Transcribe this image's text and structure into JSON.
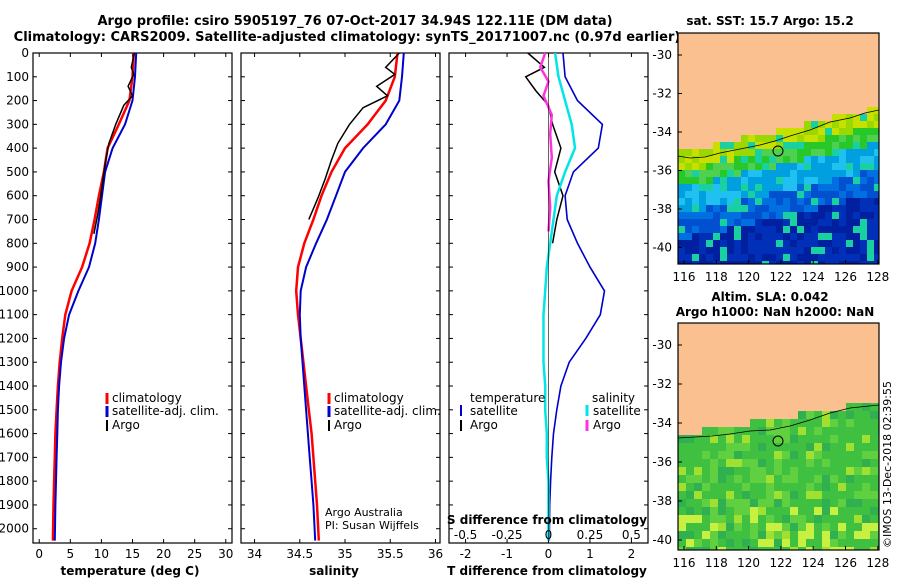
{
  "header": {
    "line1": "Argo profile: csiro 5905197_76 07-Oct-2017 34.94S 122.11E (DM data)",
    "line2": "Climatology: CARS2009. Satellite-adjusted climatology: synTS_20171007.nc (0.97d earlier)"
  },
  "colors": {
    "climatology": "#ff0000",
    "satellite": "#0000cc",
    "argo": "#000000",
    "sat_salinity": "#00e5e5",
    "argo_salinity": "#ff33dd",
    "land": "#fbc08f"
  },
  "chart_data": [
    {
      "type": "line",
      "xlabel": "temperature (deg C)",
      "xlim": [
        -1,
        31
      ],
      "ylim": [
        2060,
        0
      ],
      "yticks": [
        0,
        100,
        200,
        300,
        400,
        500,
        600,
        700,
        800,
        900,
        1000,
        1100,
        1200,
        1300,
        1400,
        1500,
        1600,
        1700,
        1800,
        1900,
        2000
      ],
      "xticks": [
        0,
        5,
        10,
        15,
        20,
        25,
        30
      ],
      "legend": [
        "climatology",
        "satellite-adj. clim.",
        "Argo"
      ],
      "series": [
        {
          "name": "climatology",
          "x": [
            15.2,
            15.0,
            14.5,
            12.8,
            11.0,
            10.4,
            9.6,
            8.9,
            8.1,
            6.9,
            5.2,
            4.2,
            3.7,
            3.3,
            3.0,
            2.8,
            2.6,
            2.5,
            2.4,
            2.3,
            2.2
          ],
          "y": [
            0,
            100,
            200,
            300,
            400,
            500,
            600,
            700,
            800,
            900,
            1000,
            1100,
            1200,
            1300,
            1400,
            1500,
            1600,
            1700,
            1800,
            1900,
            2050
          ]
        },
        {
          "name": "satellite-adj. clim.",
          "x": [
            15.6,
            15.4,
            15.0,
            13.8,
            11.8,
            10.6,
            10.1,
            9.6,
            9.0,
            8.0,
            6.3,
            4.8,
            4.0,
            3.5,
            3.2,
            3.0,
            2.9,
            2.8,
            2.7,
            2.6,
            2.5
          ],
          "y": [
            0,
            100,
            200,
            300,
            400,
            500,
            600,
            700,
            800,
            900,
            1000,
            1100,
            1200,
            1300,
            1400,
            1500,
            1600,
            1700,
            1800,
            1900,
            2050
          ]
        },
        {
          "name": "Argo",
          "x": [
            15.3,
            14.8,
            15.2,
            14.3,
            15.0,
            13.6,
            12.3,
            11.2,
            10.7,
            10.3,
            9.9,
            9.4,
            8.8
          ],
          "y": [
            0,
            60,
            90,
            140,
            180,
            220,
            300,
            380,
            450,
            520,
            600,
            680,
            760
          ]
        }
      ]
    },
    {
      "type": "line",
      "xlabel": "salinity",
      "xlim": [
        33.85,
        36.05
      ],
      "ylim": [
        2060,
        0
      ],
      "xticks": [
        34,
        34.5,
        35,
        35.5,
        36
      ],
      "legend": [
        "climatology",
        "satellite-adj. clim.",
        "Argo"
      ],
      "annotation": [
        "Argo Australia",
        "PI: Susan Wijffels"
      ],
      "series": [
        {
          "name": "climatology",
          "x": [
            35.58,
            35.55,
            35.45,
            35.25,
            35.0,
            34.85,
            34.74,
            34.65,
            34.55,
            34.48,
            34.46,
            34.48,
            34.51,
            34.54,
            34.57,
            34.6,
            34.63,
            34.65,
            34.67,
            34.69,
            34.71
          ],
          "y": [
            0,
            100,
            200,
            300,
            400,
            500,
            600,
            700,
            800,
            900,
            1000,
            1100,
            1200,
            1300,
            1400,
            1500,
            1600,
            1700,
            1800,
            1900,
            2050
          ]
        },
        {
          "name": "satellite-adj. clim.",
          "x": [
            35.65,
            35.63,
            35.6,
            35.45,
            35.2,
            35.0,
            34.9,
            34.8,
            34.68,
            34.57,
            34.51,
            34.5,
            34.51,
            34.53,
            34.55,
            34.57,
            34.59,
            34.61,
            34.63,
            34.65,
            34.67
          ],
          "y": [
            0,
            100,
            200,
            300,
            400,
            500,
            600,
            700,
            800,
            900,
            1000,
            1100,
            1200,
            1300,
            1400,
            1500,
            1600,
            1700,
            1800,
            1900,
            2050
          ]
        },
        {
          "name": "Argo",
          "x": [
            35.6,
            35.45,
            35.55,
            35.35,
            35.47,
            35.2,
            35.05,
            34.92,
            34.85,
            34.78,
            34.7,
            34.6
          ],
          "y": [
            0,
            60,
            90,
            140,
            180,
            230,
            300,
            380,
            450,
            530,
            610,
            700
          ]
        }
      ]
    },
    {
      "type": "line",
      "xlabel": "T difference from climatology",
      "xlabel2": "S difference from climatology",
      "xlim": [
        -2.4,
        2.4
      ],
      "ylim": [
        2060,
        0
      ],
      "xticks": [
        -2,
        -1,
        0,
        1,
        2
      ],
      "xticks2": [
        "-0.5",
        "-0.25",
        "0",
        "0.25",
        "0.5"
      ],
      "legend_left_title": "temperature",
      "legend_right_title": "salinity",
      "legend_left": [
        "satellite",
        "Argo"
      ],
      "legend_right": [
        "satellite",
        "Argo"
      ],
      "series": [
        {
          "name": "satellite",
          "x": [
            0.35,
            0.4,
            0.7,
            1.3,
            1.2,
            0.6,
            0.4,
            0.45,
            0.7,
            1.0,
            1.35,
            1.25,
            0.9,
            0.5,
            0.3,
            0.2,
            0.12,
            0.08,
            0.05,
            0.03,
            0.02
          ],
          "y": [
            0,
            100,
            200,
            300,
            400,
            500,
            600,
            700,
            800,
            900,
            1000,
            1100,
            1200,
            1300,
            1400,
            1500,
            1600,
            1700,
            1800,
            1900,
            2050
          ]
        },
        {
          "name": "Argo",
          "x": [
            -0.5,
            -0.1,
            -0.55,
            -0.3,
            0.0,
            0.1,
            0.3,
            0.15,
            0.35,
            0.2,
            0.1
          ],
          "y": [
            0,
            60,
            100,
            160,
            220,
            300,
            400,
            500,
            600,
            700,
            800
          ]
        },
        {
          "name": "satellite",
          "x": [
            0.04,
            0.06,
            0.1,
            0.14,
            0.16,
            0.1,
            0.05,
            0.03,
            0.01,
            -0.01,
            -0.02,
            -0.03,
            -0.03,
            -0.03,
            -0.02,
            -0.02,
            -0.01,
            -0.01,
            0.0,
            0.0,
            0.0
          ],
          "y": [
            0,
            100,
            200,
            300,
            400,
            500,
            600,
            700,
            800,
            900,
            1000,
            1100,
            1200,
            1300,
            1400,
            1500,
            1600,
            1700,
            1800,
            1900,
            2050
          ]
        },
        {
          "name": "Argo",
          "x": [
            -0.02,
            -0.05,
            0.0,
            -0.03,
            0.02,
            0.01,
            0.02,
            0.0,
            0.01,
            0.0
          ],
          "y": [
            0,
            60,
            120,
            180,
            260,
            340,
            440,
            540,
            650,
            750
          ]
        }
      ]
    }
  ],
  "maps": {
    "top_title": "sat. SST: 15.7 Argo: 15.2",
    "bottom_title_1": "Altim. SLA: 0.042",
    "bottom_title_2": "Argo h1000: NaN h2000: NaN",
    "xticks": [
      "116",
      "118",
      "120",
      "122",
      "124",
      "126",
      "128"
    ],
    "yticks": [
      "-30",
      "-32",
      "-34",
      "-36",
      "-38",
      "-40"
    ]
  },
  "axis_depth_labels": [
    "0",
    "100",
    "200",
    "300",
    "400",
    "500",
    "600",
    "700",
    "800",
    "900",
    "1000",
    "1100",
    "1200",
    "1300",
    "1400",
    "1500",
    "1600",
    "1700",
    "1800",
    "1900",
    "2000"
  ],
  "temp_ticks": [
    "0",
    "5",
    "10",
    "15",
    "20",
    "25",
    "30"
  ],
  "sal_ticks": [
    "34",
    "34.5",
    "35",
    "35.5",
    "36"
  ],
  "diff_ticks": [
    "-2",
    "-1",
    "0",
    "1",
    "2"
  ],
  "legends": {
    "clim": "climatology",
    "sat": "satellite-adj. clim.",
    "argo": "Argo",
    "temperature": "temperature",
    "salinity": "salinity",
    "satellite": "satellite"
  },
  "annotations": {
    "argo_aus": "Argo Australia",
    "pi": "PI: Susan Wijffels"
  },
  "xlabels": {
    "temp": "temperature (deg C)",
    "sal": "salinity",
    "tdiff": "T difference from climatology",
    "sdiff": "S difference from climatology"
  },
  "watermark": "©IMOS 13-Dec-2018 02:39:55"
}
